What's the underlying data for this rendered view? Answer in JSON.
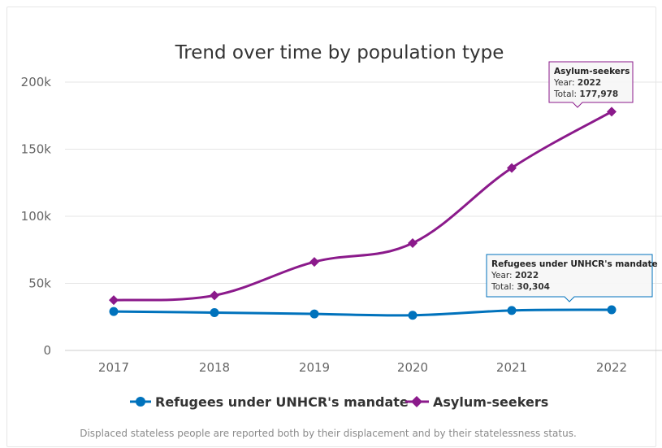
{
  "chart_data": {
    "type": "line",
    "title": "Trend over time by population type",
    "categories": [
      "2017",
      "2018",
      "2019",
      "2020",
      "2021",
      "2022"
    ],
    "ylim": [
      0,
      200000
    ],
    "yticks": [
      0,
      50000,
      100000,
      150000,
      200000
    ],
    "ytick_labels": [
      "0",
      "50k",
      "100k",
      "150k",
      "200k"
    ],
    "grid": true,
    "legend_position": "bottom-center",
    "series": [
      {
        "name": "Refugees under UNHCR's mandate",
        "color": "#0072BC",
        "marker": "circle",
        "values": [
          29000,
          28200,
          27200,
          26200,
          29800,
          30304
        ]
      },
      {
        "name": "Asylum-seekers",
        "color": "#8B1A8B",
        "marker": "diamond",
        "values": [
          37500,
          41000,
          66000,
          80000,
          136000,
          177978
        ]
      }
    ],
    "tooltips": [
      {
        "series": 1,
        "index": 5,
        "title": "Asylum-seekers",
        "year_label": "Year: ",
        "year": "2022",
        "total_label": "Total: ",
        "total": "177,978"
      },
      {
        "series": 0,
        "index": 5,
        "title": "Refugees under UNHCR's mandate",
        "year_label": "Year: ",
        "year": "2022",
        "total_label": "Total: ",
        "total": "30,304"
      }
    ],
    "footnote": "Displaced stateless people are reported both by their displacement and by their statelessness status."
  }
}
